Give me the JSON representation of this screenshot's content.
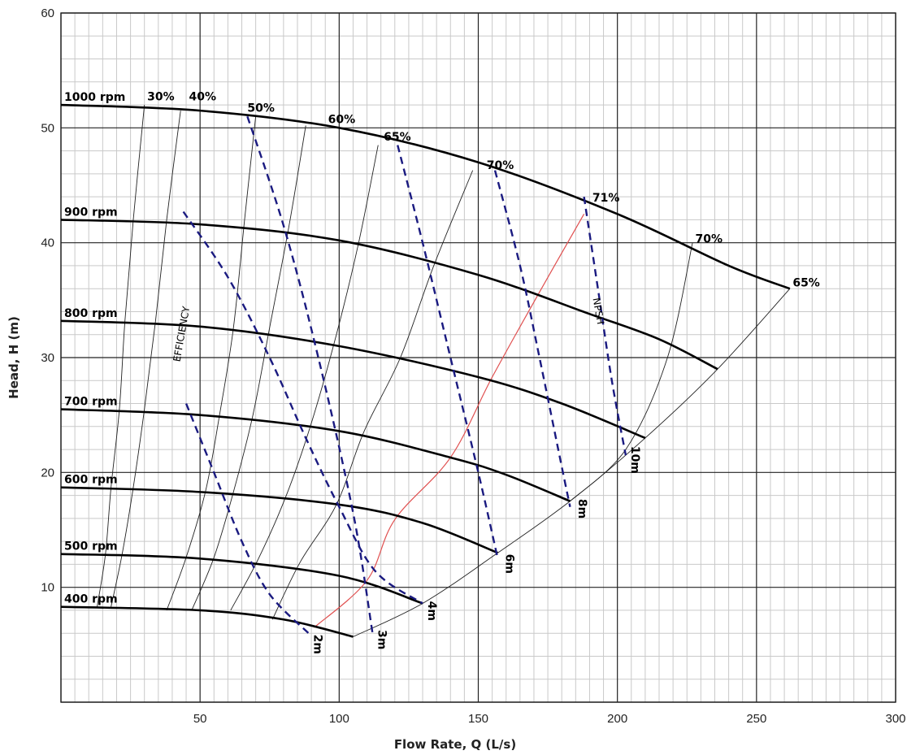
{
  "chart_data": {
    "type": "line",
    "xlabel": "Flow Rate, Q (L/s)",
    "ylabel": "Head, H (m)",
    "xlim": [
      0,
      300
    ],
    "ylim": [
      0,
      60
    ],
    "x_ticks": [
      "50",
      "100",
      "150",
      "200",
      "250",
      "300"
    ],
    "y_ticks": [
      "10",
      "20",
      "30",
      "40",
      "50",
      "60"
    ],
    "grid": true,
    "speed_curves": [
      {
        "name": "1000 rpm",
        "points": [
          [
            0,
            52
          ],
          [
            50,
            51.5
          ],
          [
            100,
            50
          ],
          [
            150,
            47
          ],
          [
            200,
            42.5
          ],
          [
            240,
            38
          ],
          [
            262,
            36
          ]
        ]
      },
      {
        "name": "900 rpm",
        "points": [
          [
            0,
            42
          ],
          [
            50,
            41.6
          ],
          [
            100,
            40.2
          ],
          [
            150,
            37.2
          ],
          [
            190,
            33.8
          ],
          [
            215,
            31.6
          ],
          [
            236,
            29
          ]
        ]
      },
      {
        "name": "800 rpm",
        "points": [
          [
            0,
            33.2
          ],
          [
            50,
            32.7
          ],
          [
            100,
            31
          ],
          [
            150,
            28.3
          ],
          [
            180,
            26
          ],
          [
            210,
            23
          ]
        ]
      },
      {
        "name": "700 rpm",
        "points": [
          [
            0,
            25.5
          ],
          [
            50,
            25
          ],
          [
            100,
            23.6
          ],
          [
            140,
            21.3
          ],
          [
            160,
            19.8
          ],
          [
            183,
            17.5
          ]
        ]
      },
      {
        "name": "600 rpm",
        "points": [
          [
            0,
            18.7
          ],
          [
            50,
            18.3
          ],
          [
            100,
            17.2
          ],
          [
            130,
            15.6
          ],
          [
            157,
            13
          ]
        ]
      },
      {
        "name": "500 rpm",
        "points": [
          [
            0,
            12.9
          ],
          [
            50,
            12.5
          ],
          [
            100,
            11
          ],
          [
            130,
            8.6
          ]
        ]
      },
      {
        "name": "400 rpm",
        "points": [
          [
            0,
            8.3
          ],
          [
            50,
            8
          ],
          [
            80,
            7.2
          ],
          [
            105,
            5.7
          ]
        ]
      }
    ],
    "efficiency_lines": [
      {
        "label": "30%",
        "points": [
          [
            13,
            8.3
          ],
          [
            16,
            12.9
          ],
          [
            18,
            18.7
          ],
          [
            21,
            25.5
          ],
          [
            23,
            33.2
          ],
          [
            26,
            42
          ],
          [
            30,
            52
          ]
        ]
      },
      {
        "label": "40%",
        "points": [
          [
            18,
            8.3
          ],
          [
            22,
            12.9
          ],
          [
            26,
            18.7
          ],
          [
            30,
            25.5
          ],
          [
            34,
            33.2
          ],
          [
            38,
            42
          ],
          [
            43,
            51.5
          ]
        ]
      },
      {
        "label": "",
        "points": [
          [
            38,
            8
          ],
          [
            45,
            12.6
          ],
          [
            52,
            18.4
          ],
          [
            57,
            25
          ],
          [
            62,
            32.6
          ],
          [
            66,
            42
          ],
          [
            70,
            51
          ]
        ]
      },
      {
        "label": "",
        "points": [
          [
            47,
            8
          ],
          [
            55,
            12.6
          ],
          [
            62,
            18.3
          ],
          [
            69,
            25
          ],
          [
            75,
            32.6
          ],
          [
            82,
            41.5
          ],
          [
            88,
            50.2
          ]
        ]
      },
      {
        "label": "",
        "points": [
          [
            61,
            8
          ],
          [
            71,
            12.5
          ],
          [
            81,
            18
          ],
          [
            90,
            24.3
          ],
          [
            99,
            32
          ],
          [
            107,
            40
          ],
          [
            114,
            48.5
          ]
        ]
      },
      {
        "label": "",
        "points": [
          [
            76,
            7.2
          ],
          [
            86,
            12.2
          ],
          [
            99,
            17.2
          ],
          [
            109,
            23.6
          ],
          [
            122,
            30
          ],
          [
            134,
            38
          ],
          [
            148,
            46.3
          ]
        ]
      },
      {
        "label": "",
        "points": [
          [
            91,
            6.5
          ],
          [
            110,
            10.6
          ],
          [
            120,
            15.9
          ],
          [
            140,
            21.3
          ],
          [
            155,
            28.3
          ],
          [
            172,
            35.7
          ],
          [
            188,
            42.5
          ]
        ]
      },
      {
        "label": "",
        "points": [
          [
            105,
            5.7
          ],
          [
            130,
            8.6
          ],
          [
            157,
            13
          ],
          [
            183,
            17.5
          ],
          [
            210,
            23
          ],
          [
            236,
            29
          ],
          [
            262,
            36
          ]
        ]
      },
      {
        "label": "",
        "points": [
          [
            183,
            17.5
          ],
          [
            203,
            22
          ],
          [
            218,
            30
          ],
          [
            227,
            40
          ]
        ]
      }
    ],
    "efficiency_labels": [
      {
        "text": "30%",
        "x": 31,
        "y": 52.4
      },
      {
        "text": "40%",
        "x": 46,
        "y": 52.4
      },
      {
        "text": "50%",
        "x": 67,
        "y": 51.4
      },
      {
        "text": "60%",
        "x": 96,
        "y": 50.4
      },
      {
        "text": "65%",
        "x": 116,
        "y": 48.9
      },
      {
        "text": "70%",
        "x": 153,
        "y": 46.4
      },
      {
        "text": "71%",
        "x": 191,
        "y": 43.6
      },
      {
        "text": "70%",
        "x": 228,
        "y": 40
      },
      {
        "text": "65%",
        "x": 263,
        "y": 36.2
      }
    ],
    "npsh_lines": [
      {
        "label": "2m",
        "points": [
          [
            45,
            26
          ],
          [
            55,
            20
          ],
          [
            65,
            14
          ],
          [
            75,
            9.4
          ],
          [
            89,
            6
          ]
        ]
      },
      {
        "label": "3m",
        "points": [
          [
            67,
            51
          ],
          [
            80,
            41.5
          ],
          [
            92,
            30.5
          ],
          [
            105,
            16.5
          ],
          [
            112,
            6
          ]
        ]
      },
      {
        "label": "4m",
        "points": [
          [
            44,
            42.7
          ],
          [
            60,
            37
          ],
          [
            75,
            30
          ],
          [
            88,
            23
          ],
          [
            100,
            17
          ],
          [
            113,
            11.4
          ],
          [
            130,
            8.6
          ]
        ]
      },
      {
        "label": "6m",
        "points": [
          [
            121,
            48.5
          ],
          [
            130,
            40
          ],
          [
            140,
            30
          ],
          [
            150,
            20
          ],
          [
            157,
            12.5
          ]
        ]
      },
      {
        "label": "8m",
        "points": [
          [
            156,
            46.3
          ],
          [
            165,
            38
          ],
          [
            172,
            30
          ],
          [
            180,
            20.5
          ],
          [
            183,
            17
          ]
        ]
      },
      {
        "label": "10m",
        "points": [
          [
            188,
            44
          ],
          [
            193,
            36
          ],
          [
            198,
            28
          ],
          [
            203,
            21.5
          ]
        ]
      }
    ],
    "npsh_labels": [
      {
        "text": "2m",
        "x": 91,
        "y": 5.9
      },
      {
        "text": "3m",
        "x": 114,
        "y": 6.3
      },
      {
        "text": "4m",
        "x": 132,
        "y": 8.8
      },
      {
        "text": "6m",
        "x": 160,
        "y": 12.9
      },
      {
        "text": "8m",
        "x": 186,
        "y": 17.7
      },
      {
        "text": "10m",
        "x": 205,
        "y": 22.3
      }
    ],
    "annotations": [
      {
        "text": "EFFICIENCY",
        "x": 44.5,
        "y": 32
      },
      {
        "text": "NPSH",
        "x": 192,
        "y": 34
      }
    ],
    "colors": {
      "speed_curve": "#000000",
      "efficiency_line": "#222222",
      "bep_line": "#e05050",
      "npsh_line": "#1a1a80",
      "grid_major": "#222222",
      "grid_minor": "#c9c9c9"
    }
  }
}
